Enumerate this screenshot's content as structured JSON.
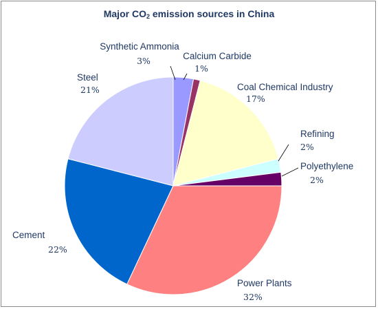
{
  "chart_data": {
    "type": "pie",
    "title_main": "Major CO",
    "title_sub": "2",
    "title_rest": " emission sources in China",
    "slices": [
      {
        "name": "Synthetic Ammonia",
        "value": 3,
        "label": "3%",
        "color": "#9999ff"
      },
      {
        "name": "Calcium Carbide",
        "value": 1,
        "label": "1%",
        "color": "#993366"
      },
      {
        "name": "Coal Chemical Industry",
        "value": 17,
        "label": "17%",
        "color": "#ffffcc"
      },
      {
        "name": "Refining",
        "value": 2,
        "label": "2%",
        "color": "#ccffff"
      },
      {
        "name": "Polyethylene",
        "value": 2,
        "label": "2%",
        "color": "#660066"
      },
      {
        "name": "Power Plants",
        "value": 32,
        "label": "32%",
        "color": "#ff8080"
      },
      {
        "name": "Cement",
        "value": 22,
        "label": "22%",
        "color": "#0066cc"
      },
      {
        "name": "Steel",
        "value": 21,
        "label": "21%",
        "color": "#ccccff"
      }
    ]
  }
}
